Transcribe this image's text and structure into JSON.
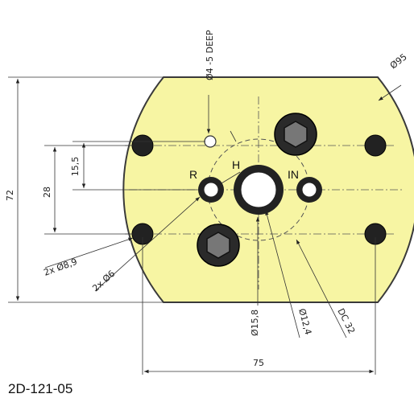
{
  "drawing": {
    "part_fill": "#f7f5a3",
    "outline_color": "#3a3a3a",
    "hole_fill": "#222222",
    "dimensions": {
      "height_72": "72",
      "pitch_28": "28",
      "offset_15_5": "15,5",
      "width_75": "75",
      "diameter_95": "Ø95",
      "blind_hole": "Ø4 -5 DEEP",
      "bolt_holes": "2x Ø8,9",
      "port_holes": "2x Ø6",
      "center_bore_outer": "Ø15,8",
      "center_bore_inner": "Ø12,4",
      "dc_circle": "DC 32"
    },
    "port_labels": {
      "r": "R",
      "h": "H",
      "in": "IN"
    }
  },
  "caption": "2D-121-05"
}
